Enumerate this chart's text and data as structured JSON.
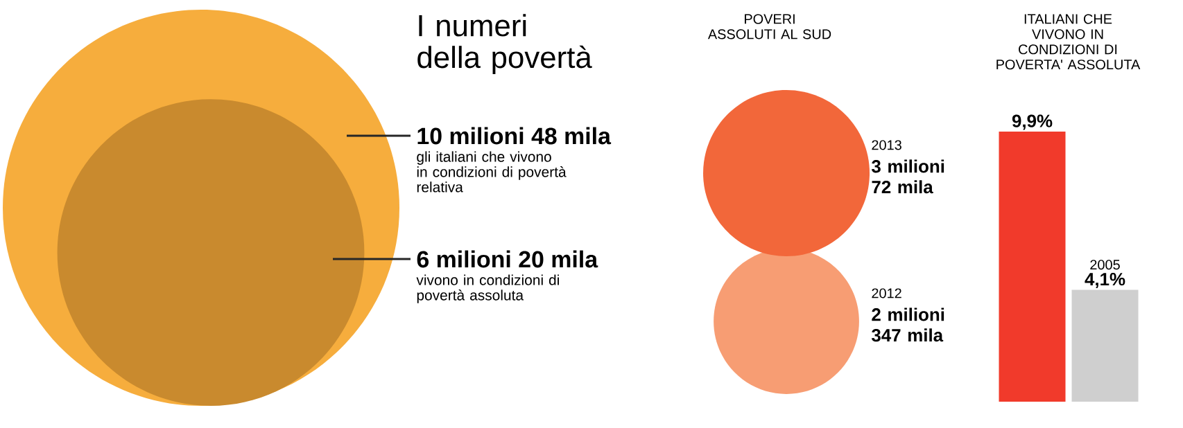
{
  "chart_data": [
    {
      "type": "other",
      "title": "I numeri della povertà",
      "categories": [
        "gli italiani che vivono in condizioni di povertà relativa",
        "vivono in condizioni di povertà assoluta"
      ],
      "values": [
        10.048,
        6.02
      ],
      "value_labels": [
        "10 milioni 48 mila",
        "6 milioni 20 mila"
      ],
      "colors": [
        "#f6ad3d",
        "#c98a2e"
      ]
    },
    {
      "type": "other",
      "title": "POVERI ASSOLUTI AL SUD",
      "categories": [
        "2013",
        "2012"
      ],
      "values": [
        3.072,
        2.347
      ],
      "value_labels": [
        "3 milioni 72 mila",
        "2 milioni 347 mila"
      ],
      "colors": [
        "#f2673a",
        "#f79d73"
      ]
    },
    {
      "type": "bar",
      "title": "ITALIANI CHE VIVONO IN CONDIZIONI DI POVERTA' ASSOLUTA",
      "categories": [
        null,
        "2005"
      ],
      "values": [
        9.9,
        4.1
      ],
      "value_labels": [
        "9,9%",
        "4,1%"
      ],
      "colors": [
        "#f13a2b",
        "#cfcfcf"
      ]
    }
  ]
}
